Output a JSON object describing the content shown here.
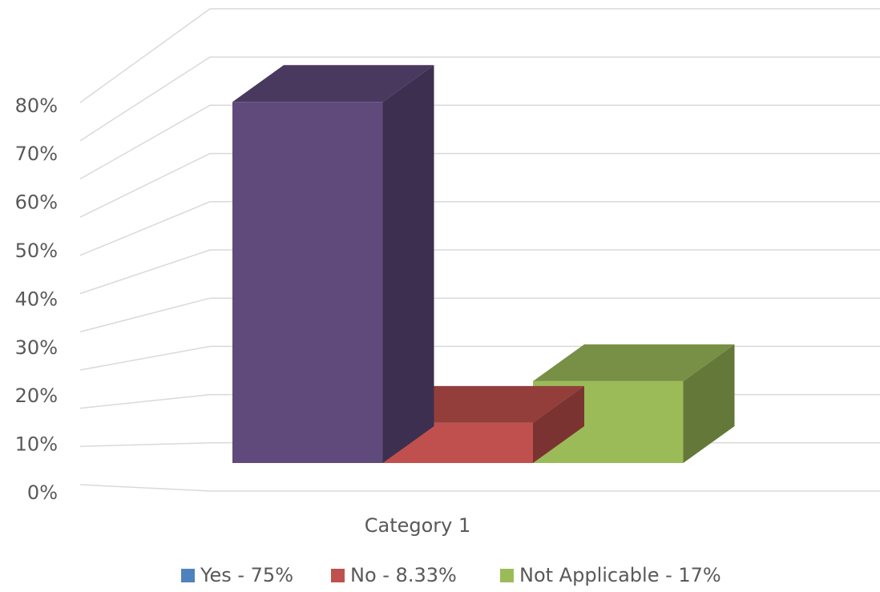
{
  "chart_data": {
    "type": "bar3d",
    "categories": [
      "Category 1"
    ],
    "series": [
      {
        "name": "Yes - 75%",
        "color": "#604a7b",
        "legend_color": "#4f81bd",
        "values": [
          75
        ]
      },
      {
        "name": "No - 8.33%",
        "color": "#c0504d",
        "legend_color": "#c0504d",
        "values": [
          8.33
        ]
      },
      {
        "name": "Not Applicable - 17%",
        "color": "#9bbb59",
        "legend_color": "#9bbb59",
        "values": [
          17
        ]
      }
    ],
    "ylim": [
      0,
      100
    ],
    "yticks": [
      {
        "value": 0,
        "label": "0%"
      },
      {
        "value": 10,
        "label": "10%"
      },
      {
        "value": 20,
        "label": "20%"
      },
      {
        "value": 30,
        "label": "30%"
      },
      {
        "value": 40,
        "label": "40%"
      },
      {
        "value": 50,
        "label": "50%"
      },
      {
        "value": 60,
        "label": "60%"
      },
      {
        "value": 70,
        "label": "70%"
      },
      {
        "value": 80,
        "label": "80%"
      },
      {
        "value": 90,
        "label": null
      },
      {
        "value": 100,
        "label": null
      }
    ],
    "grid": true,
    "legend": "bottom"
  }
}
